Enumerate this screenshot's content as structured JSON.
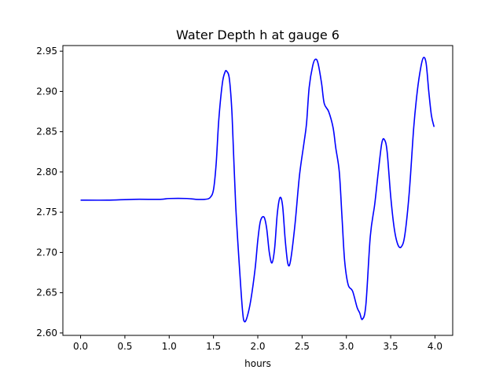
{
  "chart_data": {
    "type": "line",
    "title": "Water Depth h at gauge 6",
    "xlabel": "hours",
    "ylabel": "",
    "xlim": [
      -0.2,
      4.2
    ],
    "ylim": [
      2.597,
      2.957
    ],
    "x_ticks": [
      0.0,
      0.5,
      1.0,
      1.5,
      2.0,
      2.5,
      3.0,
      3.5,
      4.0
    ],
    "x_tick_labels": [
      "0.0",
      "0.5",
      "1.0",
      "1.5",
      "2.0",
      "2.5",
      "3.0",
      "3.5",
      "4.0"
    ],
    "y_ticks": [
      2.6,
      2.65,
      2.7,
      2.75,
      2.8,
      2.85,
      2.9,
      2.95
    ],
    "y_tick_labels": [
      "2.60",
      "2.65",
      "2.70",
      "2.75",
      "2.80",
      "2.85",
      "2.90",
      "2.95"
    ],
    "grid": false,
    "legend": false,
    "series": [
      {
        "color": "#0000ff",
        "points": [
          [
            0.0,
            2.765
          ],
          [
            0.3,
            2.765
          ],
          [
            0.6,
            2.766
          ],
          [
            0.9,
            2.766
          ],
          [
            1.0,
            2.767
          ],
          [
            1.2,
            2.767
          ],
          [
            1.3,
            2.766
          ],
          [
            1.4,
            2.766
          ],
          [
            1.46,
            2.768
          ],
          [
            1.5,
            2.778
          ],
          [
            1.53,
            2.81
          ],
          [
            1.56,
            2.865
          ],
          [
            1.6,
            2.91
          ],
          [
            1.63,
            2.924
          ],
          [
            1.65,
            2.925
          ],
          [
            1.68,
            2.915
          ],
          [
            1.71,
            2.87
          ],
          [
            1.75,
            2.76
          ],
          [
            1.8,
            2.67
          ],
          [
            1.83,
            2.625
          ],
          [
            1.85,
            2.614
          ],
          [
            1.88,
            2.62
          ],
          [
            1.92,
            2.64
          ],
          [
            1.97,
            2.68
          ],
          [
            2.0,
            2.715
          ],
          [
            2.03,
            2.739
          ],
          [
            2.07,
            2.744
          ],
          [
            2.1,
            2.73
          ],
          [
            2.13,
            2.7
          ],
          [
            2.16,
            2.687
          ],
          [
            2.19,
            2.705
          ],
          [
            2.22,
            2.748
          ],
          [
            2.25,
            2.768
          ],
          [
            2.28,
            2.758
          ],
          [
            2.31,
            2.715
          ],
          [
            2.34,
            2.686
          ],
          [
            2.37,
            2.69
          ],
          [
            2.42,
            2.735
          ],
          [
            2.47,
            2.795
          ],
          [
            2.52,
            2.835
          ],
          [
            2.55,
            2.86
          ],
          [
            2.58,
            2.905
          ],
          [
            2.62,
            2.932
          ],
          [
            2.65,
            2.94
          ],
          [
            2.68,
            2.935
          ],
          [
            2.72,
            2.91
          ],
          [
            2.75,
            2.885
          ],
          [
            2.8,
            2.875
          ],
          [
            2.85,
            2.855
          ],
          [
            2.88,
            2.83
          ],
          [
            2.92,
            2.8
          ],
          [
            2.95,
            2.745
          ],
          [
            2.98,
            2.69
          ],
          [
            3.02,
            2.66
          ],
          [
            3.07,
            2.652
          ],
          [
            3.12,
            2.632
          ],
          [
            3.15,
            2.625
          ],
          [
            3.18,
            2.617
          ],
          [
            3.22,
            2.635
          ],
          [
            3.27,
            2.72
          ],
          [
            3.32,
            2.76
          ],
          [
            3.36,
            2.8
          ],
          [
            3.4,
            2.836
          ],
          [
            3.43,
            2.84
          ],
          [
            3.46,
            2.825
          ],
          [
            3.5,
            2.77
          ],
          [
            3.54,
            2.73
          ],
          [
            3.58,
            2.71
          ],
          [
            3.62,
            2.707
          ],
          [
            3.66,
            2.722
          ],
          [
            3.71,
            2.775
          ],
          [
            3.76,
            2.855
          ],
          [
            3.8,
            2.9
          ],
          [
            3.84,
            2.93
          ],
          [
            3.87,
            2.942
          ],
          [
            3.9,
            2.935
          ],
          [
            3.93,
            2.9
          ],
          [
            3.96,
            2.87
          ],
          [
            3.99,
            2.856
          ]
        ]
      }
    ]
  }
}
